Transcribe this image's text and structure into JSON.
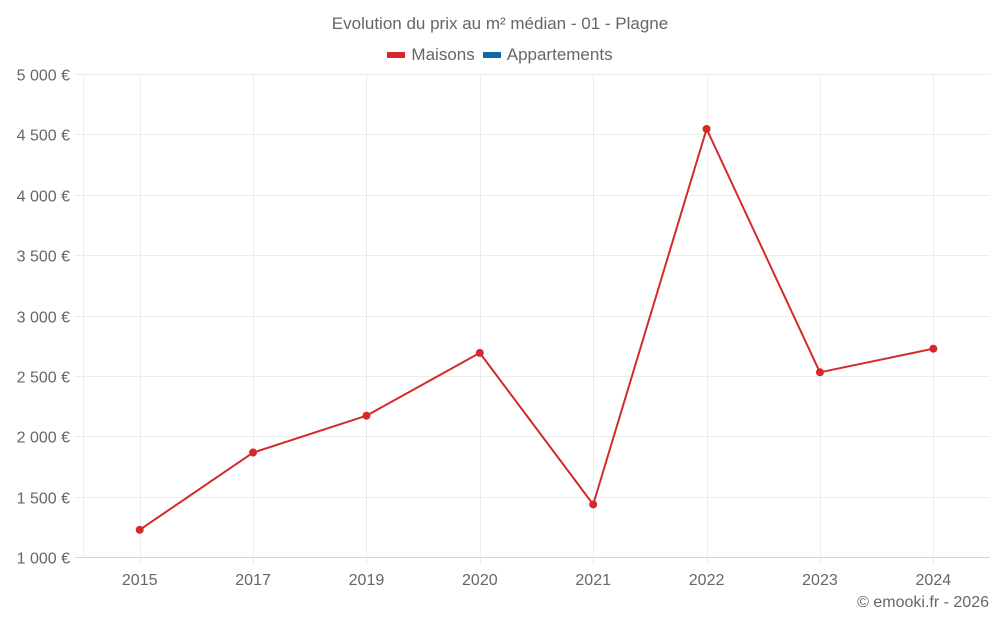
{
  "chart": {
    "title": "Evolution du prix au m² médian - 01 - Plagne",
    "credit": "© emooki.fr - 2026",
    "legend": [
      {
        "label": "Maisons",
        "color": "#d42a2a"
      },
      {
        "label": "Appartements",
        "color": "#0e6aa4"
      }
    ],
    "y_tick_labels": [
      "5 000 €",
      "4 500 €",
      "4 000 €",
      "3 500 €",
      "3 000 €",
      "2 500 €",
      "2 000 €",
      "1 500 €",
      "1 000 €"
    ]
  },
  "chart_data": {
    "type": "line",
    "title": "Evolution du prix au m² médian - 01 - Plagne",
    "categories": [
      "2015",
      "2017",
      "2019",
      "2020",
      "2021",
      "2022",
      "2023",
      "2024"
    ],
    "series": [
      {
        "name": "Maisons",
        "color": "#d42a2a",
        "values": [
          1225,
          1865,
          2170,
          2690,
          1435,
          4545,
          2530,
          2725
        ]
      },
      {
        "name": "Appartements",
        "color": "#0e6aa4",
        "values": []
      }
    ],
    "xlabel": "",
    "ylabel": "",
    "ylim": [
      1000,
      5000
    ],
    "yticks": [
      1000,
      1500,
      2000,
      2500,
      3000,
      3500,
      4000,
      4500,
      5000
    ],
    "grid": true,
    "legend_position": "top"
  }
}
